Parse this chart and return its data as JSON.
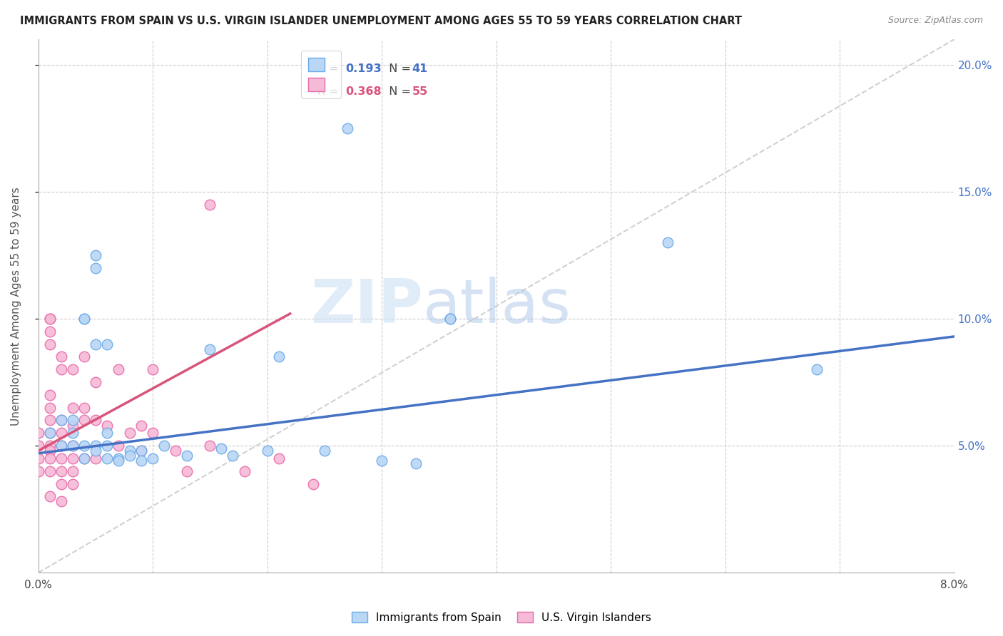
{
  "title": "IMMIGRANTS FROM SPAIN VS U.S. VIRGIN ISLANDER UNEMPLOYMENT AMONG AGES 55 TO 59 YEARS CORRELATION CHART",
  "source": "Source: ZipAtlas.com",
  "ylabel": "Unemployment Among Ages 55 to 59 years",
  "xlabel_blue": "Immigrants from Spain",
  "xlabel_pink": "U.S. Virgin Islanders",
  "xlim": [
    0.0,
    0.08
  ],
  "ylim": [
    0.0,
    0.21
  ],
  "yticks_right": [
    0.05,
    0.1,
    0.15,
    0.2
  ],
  "ytick_labels_right": [
    "5.0%",
    "10.0%",
    "15.0%",
    "20.0%"
  ],
  "legend_blue_R": "0.193",
  "legend_blue_N": "41",
  "legend_pink_R": "0.368",
  "legend_pink_N": "55",
  "blue_color": "#bad6f5",
  "pink_color": "#f5bad6",
  "blue_edge_color": "#6aaae8",
  "pink_edge_color": "#e86aaa",
  "blue_line_color": "#4472C4",
  "pink_line_color": "#d9547a",
  "ref_line_color": "#cccccc",
  "legend_R_color": "#4472C4",
  "legend_N_color": "#4472C4",
  "legend_pink_R_color": "#d9547a",
  "legend_pink_N_color": "#d9547a",
  "blue_scatter": [
    [
      0.001,
      0.055
    ],
    [
      0.002,
      0.06
    ],
    [
      0.002,
      0.05
    ],
    [
      0.003,
      0.06
    ],
    [
      0.003,
      0.055
    ],
    [
      0.003,
      0.05
    ],
    [
      0.004,
      0.1
    ],
    [
      0.004,
      0.1
    ],
    [
      0.004,
      0.05
    ],
    [
      0.004,
      0.045
    ],
    [
      0.005,
      0.125
    ],
    [
      0.005,
      0.12
    ],
    [
      0.005,
      0.09
    ],
    [
      0.005,
      0.05
    ],
    [
      0.005,
      0.048
    ],
    [
      0.006,
      0.09
    ],
    [
      0.006,
      0.055
    ],
    [
      0.006,
      0.05
    ],
    [
      0.006,
      0.045
    ],
    [
      0.007,
      0.045
    ],
    [
      0.007,
      0.044
    ],
    [
      0.008,
      0.048
    ],
    [
      0.008,
      0.046
    ],
    [
      0.009,
      0.048
    ],
    [
      0.009,
      0.044
    ],
    [
      0.01,
      0.045
    ],
    [
      0.011,
      0.05
    ],
    [
      0.013,
      0.046
    ],
    [
      0.015,
      0.088
    ],
    [
      0.016,
      0.049
    ],
    [
      0.017,
      0.046
    ],
    [
      0.02,
      0.048
    ],
    [
      0.021,
      0.085
    ],
    [
      0.025,
      0.048
    ],
    [
      0.027,
      0.175
    ],
    [
      0.03,
      0.044
    ],
    [
      0.033,
      0.043
    ],
    [
      0.036,
      0.1
    ],
    [
      0.036,
      0.1
    ],
    [
      0.055,
      0.13
    ],
    [
      0.068,
      0.08
    ]
  ],
  "pink_scatter": [
    [
      0.0,
      0.055
    ],
    [
      0.0,
      0.05
    ],
    [
      0.0,
      0.045
    ],
    [
      0.0,
      0.04
    ],
    [
      0.001,
      0.1
    ],
    [
      0.001,
      0.1
    ],
    [
      0.001,
      0.095
    ],
    [
      0.001,
      0.09
    ],
    [
      0.001,
      0.07
    ],
    [
      0.001,
      0.065
    ],
    [
      0.001,
      0.06
    ],
    [
      0.001,
      0.055
    ],
    [
      0.001,
      0.05
    ],
    [
      0.001,
      0.048
    ],
    [
      0.001,
      0.045
    ],
    [
      0.001,
      0.04
    ],
    [
      0.001,
      0.03
    ],
    [
      0.002,
      0.085
    ],
    [
      0.002,
      0.08
    ],
    [
      0.002,
      0.06
    ],
    [
      0.002,
      0.055
    ],
    [
      0.002,
      0.05
    ],
    [
      0.002,
      0.045
    ],
    [
      0.002,
      0.04
    ],
    [
      0.002,
      0.035
    ],
    [
      0.002,
      0.028
    ],
    [
      0.003,
      0.08
    ],
    [
      0.003,
      0.065
    ],
    [
      0.003,
      0.058
    ],
    [
      0.003,
      0.05
    ],
    [
      0.003,
      0.045
    ],
    [
      0.003,
      0.04
    ],
    [
      0.003,
      0.035
    ],
    [
      0.004,
      0.085
    ],
    [
      0.004,
      0.065
    ],
    [
      0.004,
      0.06
    ],
    [
      0.004,
      0.045
    ],
    [
      0.005,
      0.075
    ],
    [
      0.005,
      0.06
    ],
    [
      0.005,
      0.045
    ],
    [
      0.006,
      0.058
    ],
    [
      0.007,
      0.08
    ],
    [
      0.007,
      0.05
    ],
    [
      0.008,
      0.055
    ],
    [
      0.009,
      0.058
    ],
    [
      0.009,
      0.048
    ],
    [
      0.01,
      0.08
    ],
    [
      0.01,
      0.055
    ],
    [
      0.012,
      0.048
    ],
    [
      0.013,
      0.04
    ],
    [
      0.015,
      0.05
    ],
    [
      0.015,
      0.145
    ],
    [
      0.018,
      0.04
    ],
    [
      0.021,
      0.045
    ],
    [
      0.024,
      0.035
    ]
  ],
  "blue_trend_x": [
    0.0,
    0.08
  ],
  "blue_trend_y": [
    0.047,
    0.093
  ],
  "pink_trend_x": [
    0.0,
    0.022
  ],
  "pink_trend_y": [
    0.048,
    0.102
  ],
  "ref_line_x": [
    0.0,
    0.08
  ],
  "ref_line_y": [
    0.0,
    0.21
  ]
}
